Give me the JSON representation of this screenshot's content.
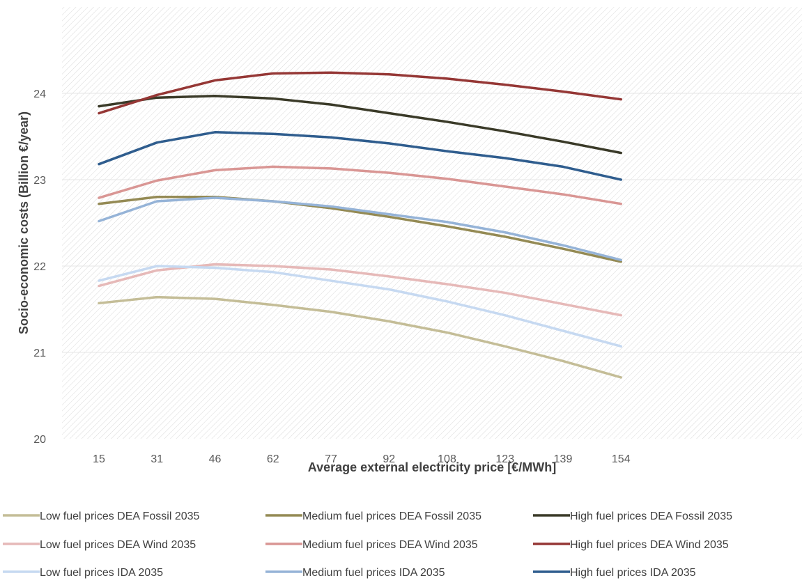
{
  "chart_data": {
    "type": "line",
    "xlabel": "Average external electricity price [€/MWh]",
    "ylabel": "Socio-economic costs (Billion €/year)",
    "categories": [
      "15",
      "31",
      "46",
      "62",
      "77",
      "92",
      "108",
      "123",
      "139",
      "154"
    ],
    "ylim": [
      20,
      25
    ],
    "yticks": [
      "20",
      "21",
      "22",
      "23",
      "24"
    ],
    "grid": true,
    "legend_position": "bottom",
    "series": [
      {
        "name": "Low fuel prices DEA Fossil 2035",
        "color": "#C4BD97",
        "values": [
          21.57,
          21.64,
          21.62,
          21.55,
          21.47,
          21.36,
          21.23,
          21.07,
          20.9,
          20.71
        ]
      },
      {
        "name": "Medium fuel prices DEA Fossil 2035",
        "color": "#948A54",
        "values": [
          22.72,
          22.8,
          22.8,
          22.75,
          22.67,
          22.57,
          22.46,
          22.34,
          22.2,
          22.05
        ]
      },
      {
        "name": "High fuel prices DEA Fossil 2035",
        "color": "#3A3A28",
        "values": [
          23.85,
          23.95,
          23.97,
          23.94,
          23.87,
          23.77,
          23.67,
          23.56,
          23.44,
          23.31
        ]
      },
      {
        "name": "Low fuel prices DEA Wind 2035",
        "color": "#E6B9B8",
        "values": [
          21.77,
          21.95,
          22.02,
          22.0,
          21.96,
          21.88,
          21.79,
          21.69,
          21.56,
          21.43
        ]
      },
      {
        "name": "Medium fuel prices DEA Wind 2035",
        "color": "#D99694",
        "values": [
          22.79,
          22.99,
          23.11,
          23.15,
          23.13,
          23.08,
          23.01,
          22.92,
          22.83,
          22.72
        ]
      },
      {
        "name": "High fuel prices DEA Wind 2035",
        "color": "#953735",
        "values": [
          23.77,
          23.98,
          24.15,
          24.23,
          24.24,
          24.22,
          24.17,
          24.1,
          24.02,
          23.93
        ]
      },
      {
        "name": "Low fuel prices IDA 2035",
        "color": "#C6D9F1",
        "values": [
          21.83,
          22.0,
          21.98,
          21.93,
          21.83,
          21.73,
          21.59,
          21.43,
          21.25,
          21.07
        ]
      },
      {
        "name": "Medium fuel prices IDA 2035",
        "color": "#95B3D7",
        "values": [
          22.52,
          22.75,
          22.79,
          22.75,
          22.69,
          22.6,
          22.51,
          22.39,
          22.24,
          22.07
        ]
      },
      {
        "name": "High fuel prices IDA 2035",
        "color": "#2F5D8E",
        "values": [
          23.18,
          23.43,
          23.55,
          23.53,
          23.49,
          23.42,
          23.33,
          23.25,
          23.15,
          23.0
        ]
      }
    ]
  }
}
